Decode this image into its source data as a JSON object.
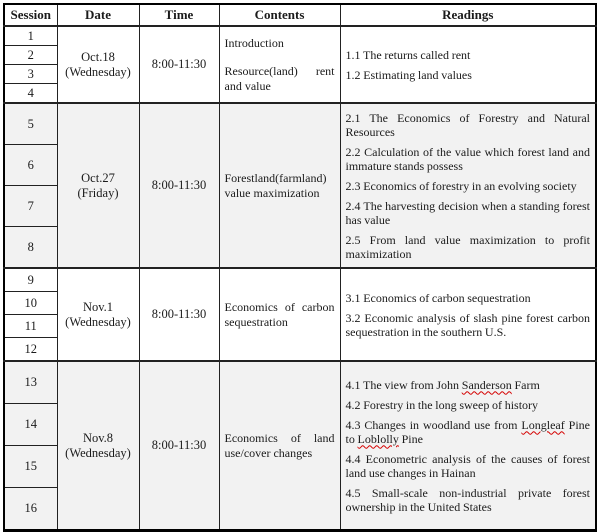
{
  "page": {
    "background": "#ffffff",
    "band_color": "#f2f2f2",
    "border_color": "#000000",
    "squiggle_color": "#d40000"
  },
  "table": {
    "headers": [
      "Session",
      "Date",
      "Time",
      "Contents",
      "Readings"
    ],
    "sections": [
      {
        "sessions": [
          "1",
          "2",
          "3",
          "4"
        ],
        "date": [
          "Oct.18",
          "(Wednesday)"
        ],
        "time": "8:00-11:30",
        "contents": [
          "Introduction",
          "Resource(land) rent and value"
        ],
        "readings": [
          {
            "segments": [
              {
                "t": "1.1 The returns called rent"
              }
            ]
          },
          {
            "segments": [
              {
                "t": "1.2 Estimating land values"
              }
            ]
          }
        ]
      },
      {
        "sessions": [
          "5",
          "6",
          "7",
          "8"
        ],
        "date": [
          "Oct.27",
          "(Friday)"
        ],
        "time": "8:00-11:30",
        "contents": [
          "Forestland(farmland) value maximization"
        ],
        "readings": [
          {
            "segments": [
              {
                "t": "2.1 The Economics of Forestry and Natural Resources"
              }
            ]
          },
          {
            "segments": [
              {
                "t": "2.2 Calculation of the value which forest land and immature stands possess"
              }
            ]
          },
          {
            "segments": [
              {
                "t": "2.3 Economics of forestry in an evolving society"
              }
            ]
          },
          {
            "segments": [
              {
                "t": "2.4 The harvesting decision when a standing forest has value"
              }
            ]
          },
          {
            "segments": [
              {
                "t": "2.5 From land value maximization to profit maximization"
              }
            ]
          }
        ]
      },
      {
        "sessions": [
          "9",
          "10",
          "11",
          "12"
        ],
        "date": [
          "Nov.1",
          "(Wednesday)"
        ],
        "time": "8:00-11:30",
        "contents": [
          "Economics of carbon sequestration"
        ],
        "readings": [
          {
            "segments": [
              {
                "t": "3.1 Economics of carbon sequestration"
              }
            ]
          },
          {
            "segments": [
              {
                "t": "3.2 Economic analysis of slash pine forest carbon sequestration in the southern U.S."
              }
            ]
          }
        ]
      },
      {
        "sessions": [
          "13",
          "14",
          "15",
          "16"
        ],
        "date": [
          "Nov.8",
          "(Wednesday)"
        ],
        "time": "8:00-11:30",
        "contents": [
          "Economics of land use/cover changes"
        ],
        "readings": [
          {
            "segments": [
              {
                "t": "4.1 The view from John "
              },
              {
                "t": "Sanderson",
                "sq": true
              },
              {
                "t": " Farm"
              }
            ]
          },
          {
            "segments": [
              {
                "t": "4.2 Forestry in the long sweep of history"
              }
            ]
          },
          {
            "segments": [
              {
                "t": "4.3 Changes in woodland use from "
              },
              {
                "t": "Longleaf",
                "sq": true
              },
              {
                "t": " Pine to "
              },
              {
                "t": "Loblolly",
                "sq": true
              },
              {
                "t": " Pine"
              }
            ]
          },
          {
            "segments": [
              {
                "t": "4.4 Econometric analysis of the causes of forest land use changes in Hainan"
              }
            ]
          },
          {
            "segments": [
              {
                "t": "4.5 Small-scale non-industrial private forest ownership in the United States"
              }
            ]
          }
        ]
      }
    ]
  }
}
